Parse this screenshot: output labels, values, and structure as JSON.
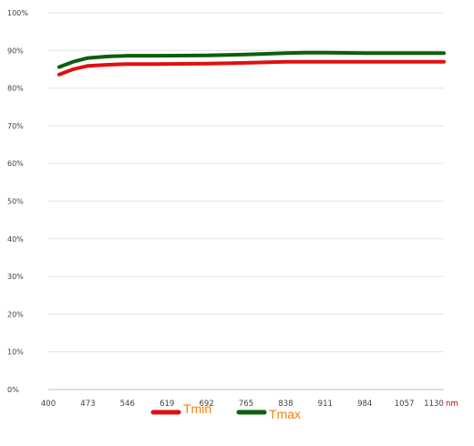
{
  "chart_data": {
    "type": "line",
    "x_unit": "nm",
    "x_ticks": [
      400,
      473,
      546,
      619,
      692,
      765,
      838,
      911,
      984,
      1057,
      1130
    ],
    "xlim": [
      400,
      1130
    ],
    "ylim": [
      0,
      100
    ],
    "y_ticks": [
      "0%",
      "10%",
      "20%",
      "30%",
      "40%",
      "50%",
      "60%",
      "70%",
      "80%",
      "90%",
      "100%"
    ],
    "grid": true,
    "legend_position": "bottom",
    "series": [
      {
        "name": "Tmin",
        "color": "#e01010",
        "x": [
          420,
          446,
          473,
          510,
          546,
          600,
          692,
          765,
          838,
          911,
          984,
          1057,
          1130
        ],
        "y": [
          83.6,
          85.0,
          85.9,
          86.2,
          86.4,
          86.4,
          86.5,
          86.7,
          87.0,
          87.0,
          87.0,
          87.0,
          87.0
        ]
      },
      {
        "name": "Tmax",
        "color": "#0d5e0d",
        "x": [
          420,
          446,
          473,
          510,
          546,
          600,
          692,
          765,
          838,
          875,
          911,
          984,
          1057,
          1130
        ],
        "y": [
          85.6,
          87.0,
          88.0,
          88.4,
          88.6,
          88.6,
          88.7,
          88.9,
          89.3,
          89.4,
          89.4,
          89.3,
          89.3,
          89.3
        ]
      }
    ],
    "legend_text_color": "#f0820a"
  }
}
